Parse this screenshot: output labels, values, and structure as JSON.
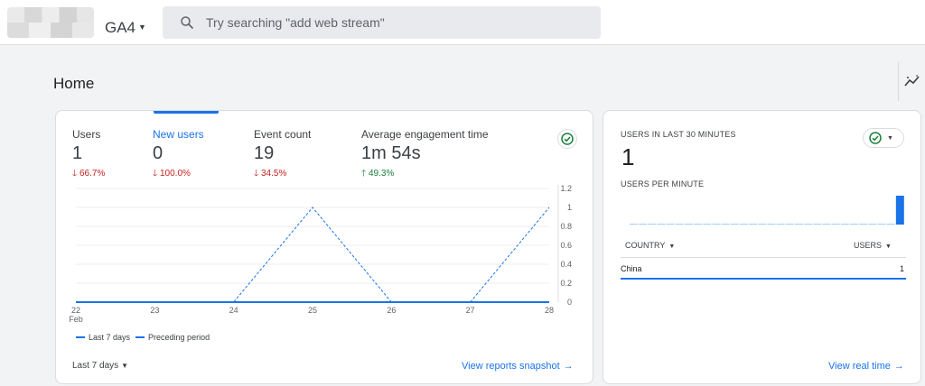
{
  "header": {
    "property_name": "GA4",
    "search_placeholder": "Try searching \"add web stream\""
  },
  "page": {
    "title": "Home"
  },
  "overview": {
    "metrics": [
      {
        "label": "Users",
        "value": "1",
        "delta": "66.7%",
        "direction": "down"
      },
      {
        "label": "New users",
        "value": "0",
        "delta": "100.0%",
        "direction": "down",
        "active": true
      },
      {
        "label": "Event count",
        "value": "19",
        "delta": "34.5%",
        "direction": "down"
      },
      {
        "label": "Average engagement time",
        "value": "1m 54s",
        "delta": "49.3%",
        "direction": "up"
      }
    ],
    "legend": [
      "Last 7 days",
      "Preceding period"
    ],
    "date_range": "Last 7 days",
    "link": "View reports snapshot"
  },
  "chart_data": {
    "type": "line",
    "x": [
      "22",
      "23",
      "24",
      "25",
      "26",
      "27",
      "28"
    ],
    "x_sublabel": "Feb",
    "y_ticks": [
      "1.2",
      "1",
      "0.8",
      "0.6",
      "0.4",
      "0.2",
      "0"
    ],
    "ylim": [
      0,
      1.2
    ],
    "series": [
      {
        "name": "Last 7 days",
        "style": "solid",
        "values": [
          0,
          0,
          0,
          0,
          0,
          0,
          0
        ]
      },
      {
        "name": "Preceding period",
        "style": "dashed",
        "values": [
          0,
          0,
          0,
          1,
          0,
          0,
          1
        ]
      }
    ],
    "grid": true,
    "legend_position": "bottom-left",
    "color": "#1a73e8"
  },
  "realtime": {
    "title": "USERS IN LAST 30 MINUTES",
    "value": "1",
    "per_minute_label": "USERS PER MINUTE",
    "per_minute_values": [
      0,
      0,
      0,
      0,
      0,
      0,
      0,
      0,
      0,
      0,
      0,
      0,
      0,
      0,
      0,
      0,
      0,
      0,
      0,
      0,
      0,
      0,
      0,
      0,
      0,
      0,
      0,
      0,
      0,
      1
    ],
    "col_country": "COUNTRY",
    "col_users": "USERS",
    "rows": [
      {
        "country": "China",
        "users": "1"
      }
    ],
    "link": "View real time"
  },
  "colors": {
    "accent": "#1a73e8",
    "down": "#c5221f",
    "up": "#188038",
    "ok": "#188038"
  }
}
